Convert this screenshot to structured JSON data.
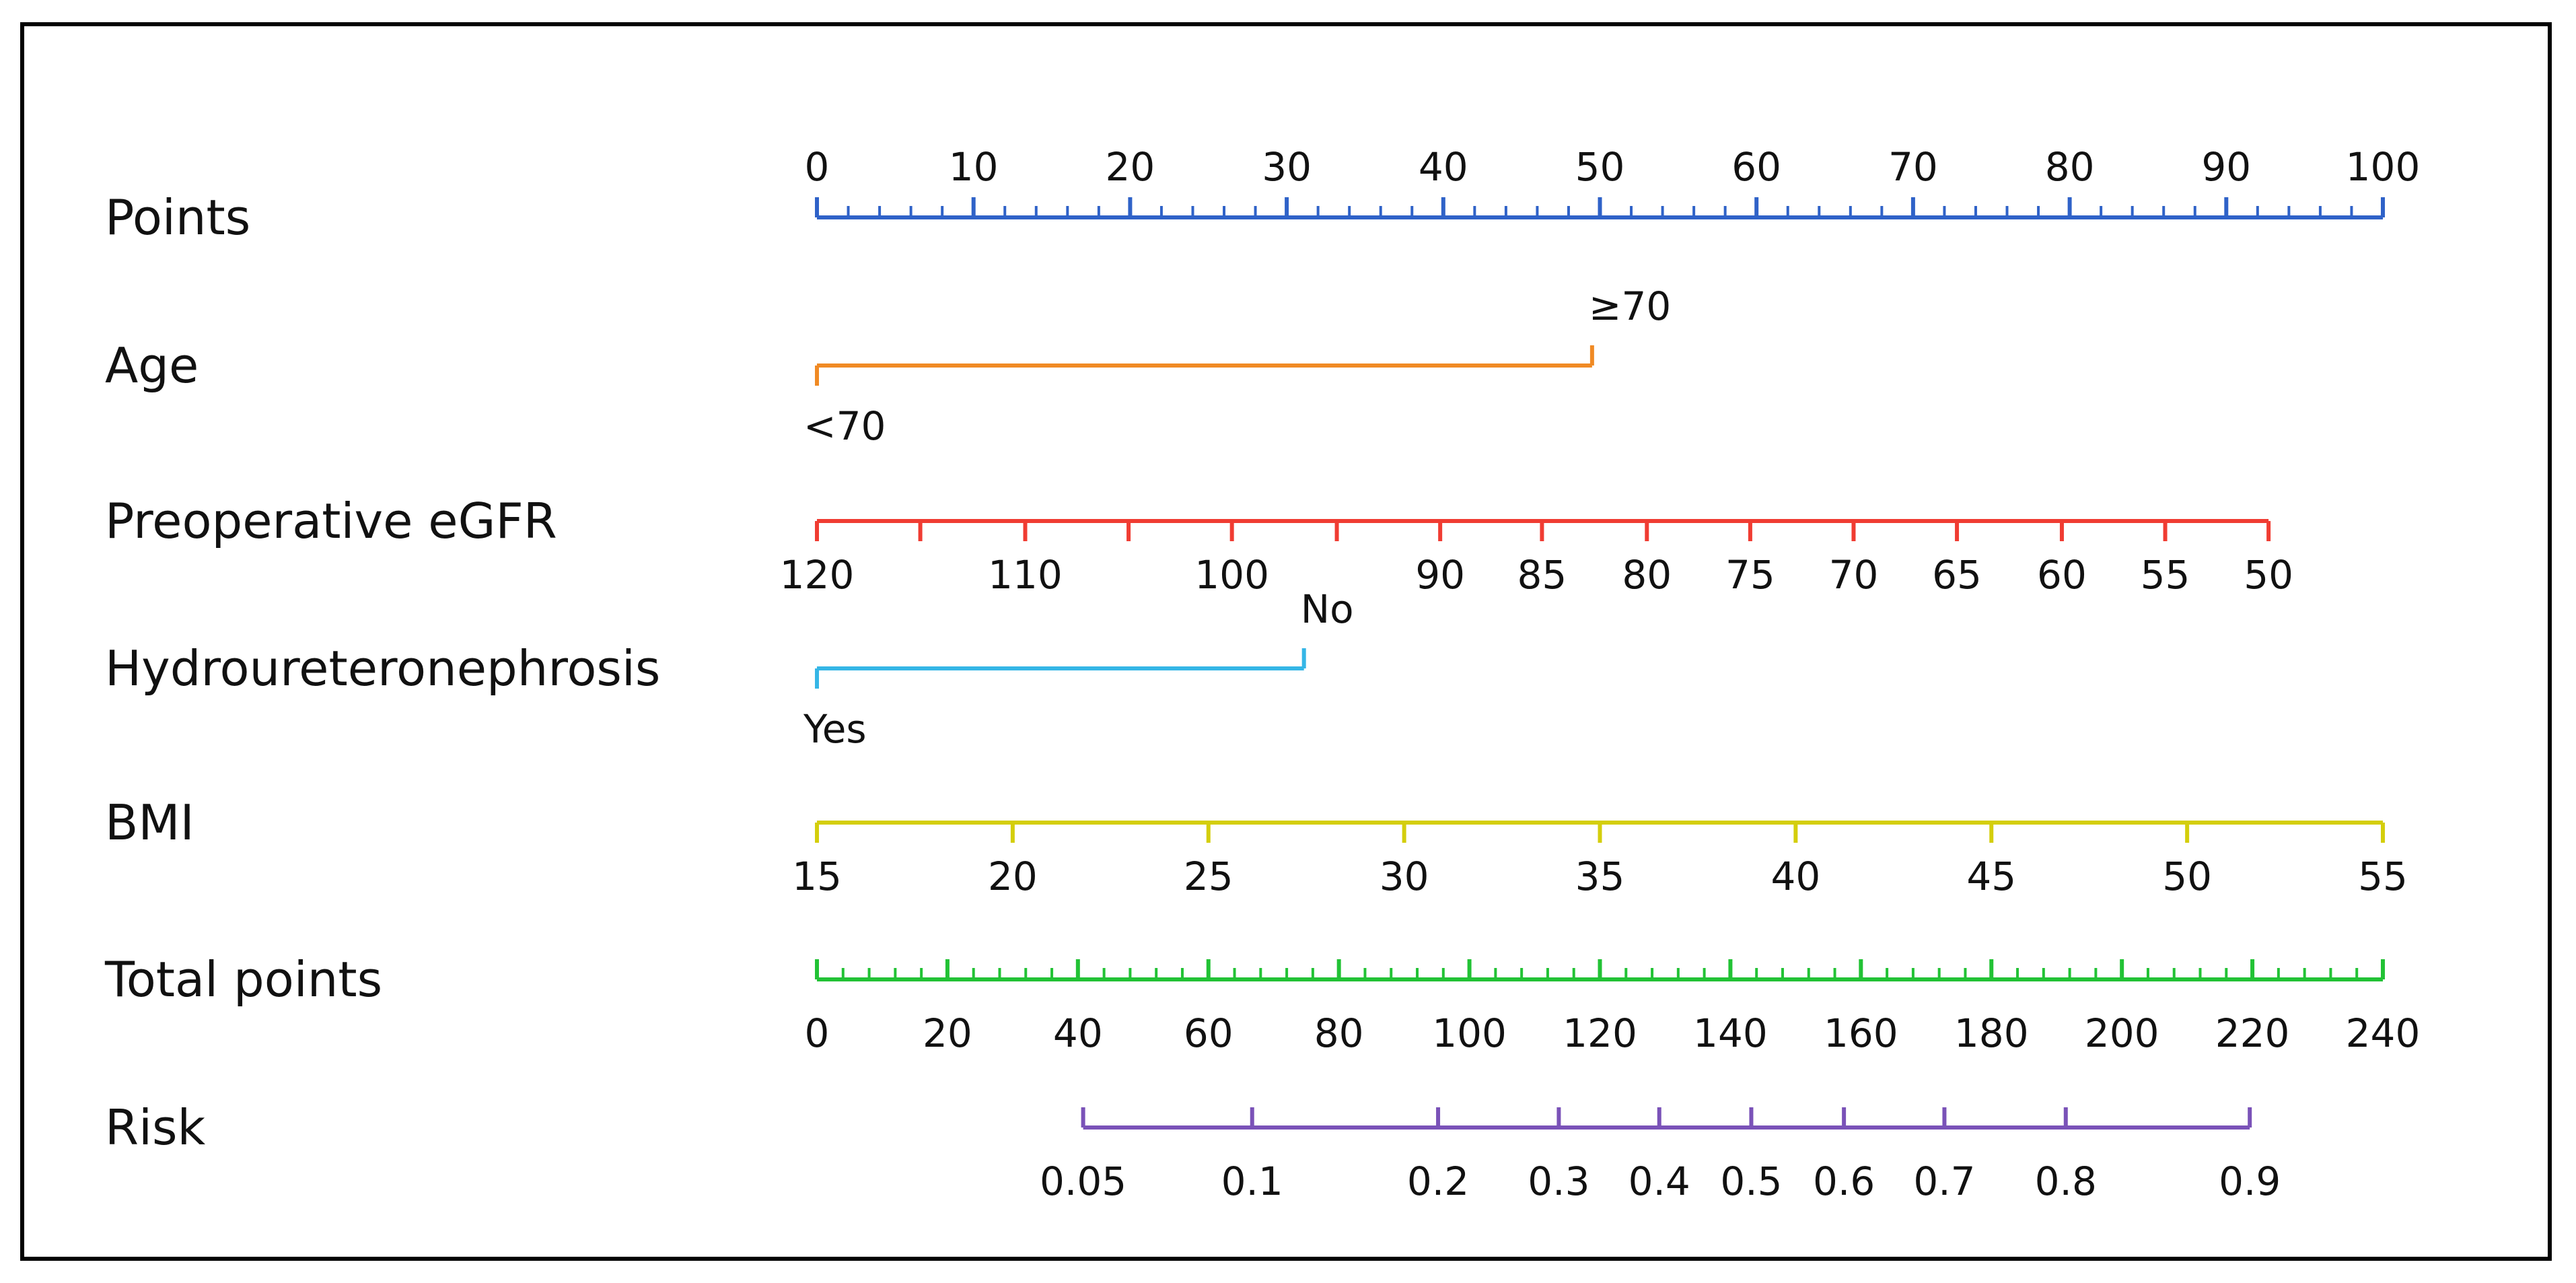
{
  "chart_data": {
    "type": "nomogram",
    "colors": {
      "points": "#2f62c8",
      "age": "#f08a24",
      "egfr": "#f03c32",
      "hydro": "#35b6e6",
      "bmi": "#d4ce0c",
      "total": "#22c235",
      "risk": "#7a52b8",
      "frame": "#000000"
    },
    "rows": [
      {
        "id": "points",
        "label": "Points",
        "color_key": "points",
        "scale_type": "points",
        "ticks": [
          {
            "text": "0",
            "points": 0
          },
          {
            "text": "10",
            "points": 10
          },
          {
            "text": "20",
            "points": 20
          },
          {
            "text": "30",
            "points": 30
          },
          {
            "text": "40",
            "points": 40
          },
          {
            "text": "50",
            "points": 50
          },
          {
            "text": "60",
            "points": 60
          },
          {
            "text": "70",
            "points": 70
          },
          {
            "text": "80",
            "points": 80
          },
          {
            "text": "90",
            "points": 90
          },
          {
            "text": "100",
            "points": 100
          }
        ],
        "minor_step": 2,
        "labels_above": true
      },
      {
        "id": "age",
        "label": "Age",
        "color_key": "age",
        "scale_type": "categorical",
        "categories": [
          {
            "text": "<70",
            "points": 0,
            "label_position": "below"
          },
          {
            "text": "≥70",
            "points": 49.5,
            "label_position": "above"
          }
        ]
      },
      {
        "id": "egfr",
        "label": "Preoperative eGFR",
        "color_key": "egfr",
        "scale_type": "continuous",
        "ticks": [
          {
            "text": "120",
            "points": 0
          },
          {
            "text": "110",
            "points": 13.3
          },
          {
            "text": "100",
            "points": 26.5
          },
          {
            "text": "90",
            "points": 39.8
          },
          {
            "text": "85",
            "points": 46.3
          },
          {
            "text": "80",
            "points": 53.0
          },
          {
            "text": "75",
            "points": 59.6
          },
          {
            "text": "70",
            "points": 66.2
          },
          {
            "text": "65",
            "points": 72.8
          },
          {
            "text": "60",
            "points": 79.5
          },
          {
            "text": "55",
            "points": 86.1
          },
          {
            "text": "50",
            "points": 92.7
          }
        ],
        "minor_points": [
          6.6,
          19.9,
          33.2
        ],
        "labels_above": false
      },
      {
        "id": "hydro",
        "label": "Hydroureteronephrosis",
        "color_key": "hydro",
        "scale_type": "categorical",
        "categories": [
          {
            "text": "Yes",
            "points": 0,
            "label_position": "below"
          },
          {
            "text": "No",
            "points": 31.1,
            "label_position": "above"
          }
        ]
      },
      {
        "id": "bmi",
        "label": "BMI",
        "color_key": "bmi",
        "scale_type": "continuous",
        "ticks": [
          {
            "text": "15",
            "points": 0
          },
          {
            "text": "20",
            "points": 12.5
          },
          {
            "text": "25",
            "points": 25
          },
          {
            "text": "30",
            "points": 37.5
          },
          {
            "text": "35",
            "points": 50
          },
          {
            "text": "40",
            "points": 62.5
          },
          {
            "text": "45",
            "points": 75
          },
          {
            "text": "50",
            "points": 87.5
          },
          {
            "text": "55",
            "points": 100
          }
        ],
        "labels_above": false
      },
      {
        "id": "total",
        "label": "Total points",
        "color_key": "total",
        "scale_type": "total",
        "ticks": [
          {
            "text": "0",
            "total": 0
          },
          {
            "text": "20",
            "total": 20
          },
          {
            "text": "40",
            "total": 40
          },
          {
            "text": "60",
            "total": 60
          },
          {
            "text": "80",
            "total": 80
          },
          {
            "text": "100",
            "total": 100
          },
          {
            "text": "120",
            "total": 120
          },
          {
            "text": "140",
            "total": 140
          },
          {
            "text": "160",
            "total": 160
          },
          {
            "text": "180",
            "total": 180
          },
          {
            "text": "200",
            "total": 200
          },
          {
            "text": "220",
            "total": 220
          },
          {
            "text": "240",
            "total": 240
          }
        ],
        "total_max": 240,
        "minor_step": 4,
        "labels_above": false
      },
      {
        "id": "risk",
        "label": "Risk",
        "color_key": "risk",
        "scale_type": "total",
        "ticks": [
          {
            "text": "0.05",
            "total": 40.8
          },
          {
            "text": "0.1",
            "total": 66.7
          },
          {
            "text": "0.2",
            "total": 95.2
          },
          {
            "text": "0.3",
            "total": 113.7
          },
          {
            "text": "0.4",
            "total": 129.1
          },
          {
            "text": "0.5",
            "total": 143.2
          },
          {
            "text": "0.6",
            "total": 157.4
          },
          {
            "text": "0.7",
            "total": 172.8
          },
          {
            "text": "0.8",
            "total": 191.4
          },
          {
            "text": "0.9",
            "total": 219.6
          }
        ],
        "labels_above": false
      }
    ]
  }
}
